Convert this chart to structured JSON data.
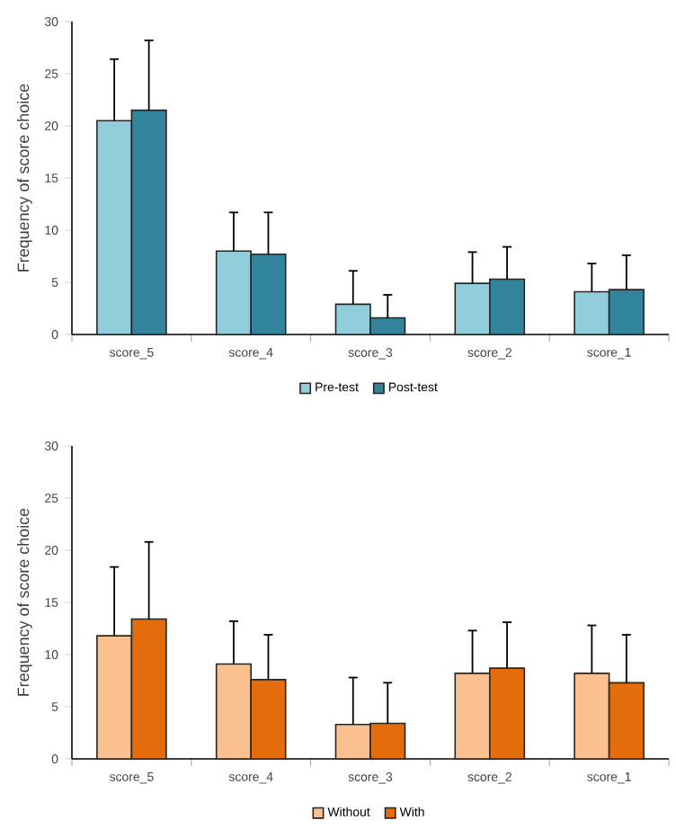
{
  "chart_data": [
    {
      "type": "bar",
      "categories": [
        "score_5",
        "score_4",
        "score_3",
        "score_2",
        "score_1"
      ],
      "ylabel": "Frequency of score choice",
      "ylim": [
        0,
        30
      ],
      "yticks": [
        0,
        5,
        10,
        15,
        20,
        25,
        30
      ],
      "legend": "bottom",
      "series": [
        {
          "name": "Pre-test",
          "color": "#92cddc",
          "values": [
            20.5,
            8.0,
            2.9,
            4.9,
            4.1
          ],
          "errors": [
            [
              20.5,
              26.4
            ],
            [
              8.0,
              11.7
            ],
            [
              2.9,
              6.1
            ],
            [
              4.9,
              7.9
            ],
            [
              4.1,
              6.8
            ]
          ]
        },
        {
          "name": "Post-test",
          "color": "#31849b",
          "values": [
            21.5,
            7.7,
            1.6,
            5.3,
            4.3
          ],
          "errors": [
            [
              21.5,
              28.2
            ],
            [
              7.7,
              11.7
            ],
            [
              1.6,
              3.8
            ],
            [
              5.3,
              8.4
            ],
            [
              4.3,
              7.6
            ]
          ]
        }
      ]
    },
    {
      "type": "bar",
      "categories": [
        "score_5",
        "score_4",
        "score_3",
        "score_2",
        "score_1"
      ],
      "ylabel": "Frequency of score choice",
      "ylim": [
        0,
        30
      ],
      "yticks": [
        0,
        5,
        10,
        15,
        20,
        25,
        30
      ],
      "legend": "bottom",
      "series": [
        {
          "name": "Without",
          "color": "#fac090",
          "values": [
            11.8,
            9.1,
            3.3,
            8.2,
            8.2
          ],
          "errors": [
            [
              11.8,
              18.4
            ],
            [
              9.1,
              13.2
            ],
            [
              3.3,
              7.8
            ],
            [
              8.2,
              12.3
            ],
            [
              8.2,
              12.8
            ]
          ]
        },
        {
          "name": "With",
          "color": "#e46c0a",
          "values": [
            13.4,
            7.6,
            3.4,
            8.7,
            7.3
          ],
          "errors": [
            [
              13.4,
              20.8
            ],
            [
              7.6,
              11.9
            ],
            [
              3.4,
              7.3
            ],
            [
              8.7,
              13.1
            ],
            [
              7.3,
              11.9
            ]
          ]
        }
      ]
    }
  ]
}
